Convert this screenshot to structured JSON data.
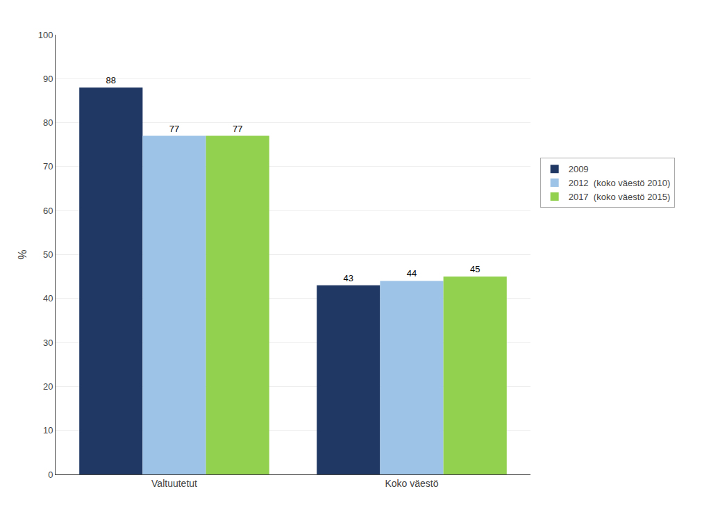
{
  "chart_data": {
    "type": "bar",
    "categories": [
      "Valtuutetut",
      "Koko väestö"
    ],
    "series": [
      {
        "name": "2009",
        "color": "#1F3864",
        "values": [
          88,
          43
        ]
      },
      {
        "name": "2012  (koko väestö 2010)",
        "color": "#9DC3E6",
        "values": [
          77,
          44
        ]
      },
      {
        "name": "2017  (koko väestö 2015)",
        "color": "#92D050",
        "values": [
          77,
          45
        ]
      }
    ],
    "ylabel": "%",
    "ylim": [
      0,
      100
    ],
    "yticks": [
      0,
      10,
      20,
      30,
      40,
      50,
      60,
      70,
      80,
      90,
      100
    ],
    "grid": true,
    "data_labels": true,
    "legend": "right"
  }
}
